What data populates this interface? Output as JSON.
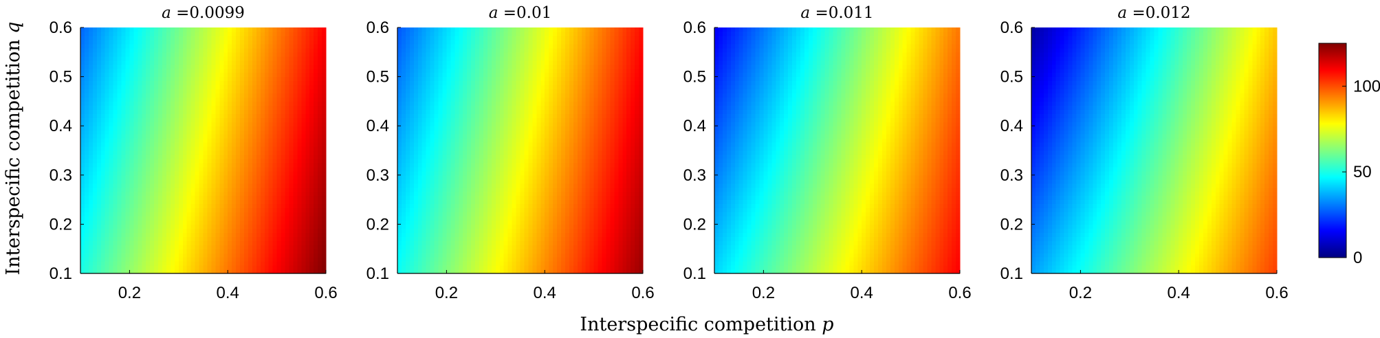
{
  "chart_data": {
    "type": "heatmap",
    "xlabel": "Interspecific competition",
    "xlabel_symbol": "p",
    "ylabel": "Interspecific competition",
    "ylabel_symbol": "q",
    "colormap": "jet",
    "colorbar": {
      "range": [
        0,
        125
      ],
      "ticks": [
        0,
        50,
        100
      ]
    },
    "panels": [
      {
        "title_symbol": "a",
        "title_value": "=0.0099",
        "xlim": [
          0.1,
          0.6
        ],
        "ylim": [
          0.1,
          0.6
        ],
        "xticks": [
          0.2,
          0.4,
          0.6
        ],
        "yticks": [
          0.1,
          0.2,
          0.3,
          0.4,
          0.5,
          0.6
        ],
        "corner_values": {
          "p0.1_q0.1": 50,
          "p0.1_q0.6": 28,
          "p0.6_q0.1": 125,
          "p0.6_q0.6": 110
        }
      },
      {
        "title_symbol": "a",
        "title_value": "=0.01",
        "xlim": [
          0.1,
          0.6
        ],
        "ylim": [
          0.1,
          0.6
        ],
        "xticks": [
          0.2,
          0.4,
          0.6
        ],
        "yticks": [
          0.1,
          0.2,
          0.3,
          0.4,
          0.5,
          0.6
        ],
        "corner_values": {
          "p0.1_q0.1": 48,
          "p0.1_q0.6": 26,
          "p0.6_q0.1": 122,
          "p0.6_q0.6": 108
        }
      },
      {
        "title_symbol": "a",
        "title_value": "=0.011",
        "xlim": [
          0.1,
          0.6
        ],
        "ylim": [
          0.1,
          0.6
        ],
        "xticks": [
          0.2,
          0.4,
          0.6
        ],
        "yticks": [
          0.1,
          0.2,
          0.3,
          0.4,
          0.5,
          0.6
        ],
        "corner_values": {
          "p0.1_q0.1": 42,
          "p0.1_q0.6": 14,
          "p0.6_q0.1": 110,
          "p0.6_q0.6": 95
        }
      },
      {
        "title_symbol": "a",
        "title_value": "=0.012",
        "xlim": [
          0.1,
          0.6
        ],
        "ylim": [
          0.1,
          0.6
        ],
        "xticks": [
          0.2,
          0.4,
          0.6
        ],
        "yticks": [
          0.1,
          0.2,
          0.3,
          0.4,
          0.5,
          0.6
        ],
        "corner_values": {
          "p0.1_q0.1": 35,
          "p0.1_q0.6": 4,
          "p0.6_q0.1": 102,
          "p0.6_q0.6": 85
        }
      }
    ]
  }
}
